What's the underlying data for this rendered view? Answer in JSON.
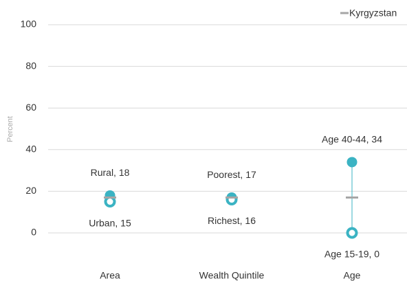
{
  "chart_data": {
    "type": "dot-range",
    "y_axis_label": "Percent",
    "categories": [
      "Area",
      "Wealth Quintile",
      "Age"
    ],
    "ylim": [
      0,
      100
    ],
    "yticks": [
      0,
      20,
      40,
      60,
      80,
      100
    ],
    "grid": true,
    "legend_position": "top-right",
    "series": [
      {
        "color": "#3bb3c3",
        "marker": "filled",
        "values": [
          18,
          17,
          34
        ],
        "value_labels": [
          "Rural, 18",
          "Poorest, 17",
          "Age 40-44, 34"
        ]
      },
      {
        "color": "#3bb3c3",
        "marker": "ring",
        "values": [
          15,
          16,
          0
        ],
        "value_labels": [
          "Urban, 15",
          "Richest, 16",
          "Age 15-19, 0"
        ]
      },
      {
        "name": "Kyrgyzstan",
        "color": "#a6a6a6",
        "marker": "dash",
        "values": [
          17,
          17,
          17
        ]
      }
    ]
  }
}
